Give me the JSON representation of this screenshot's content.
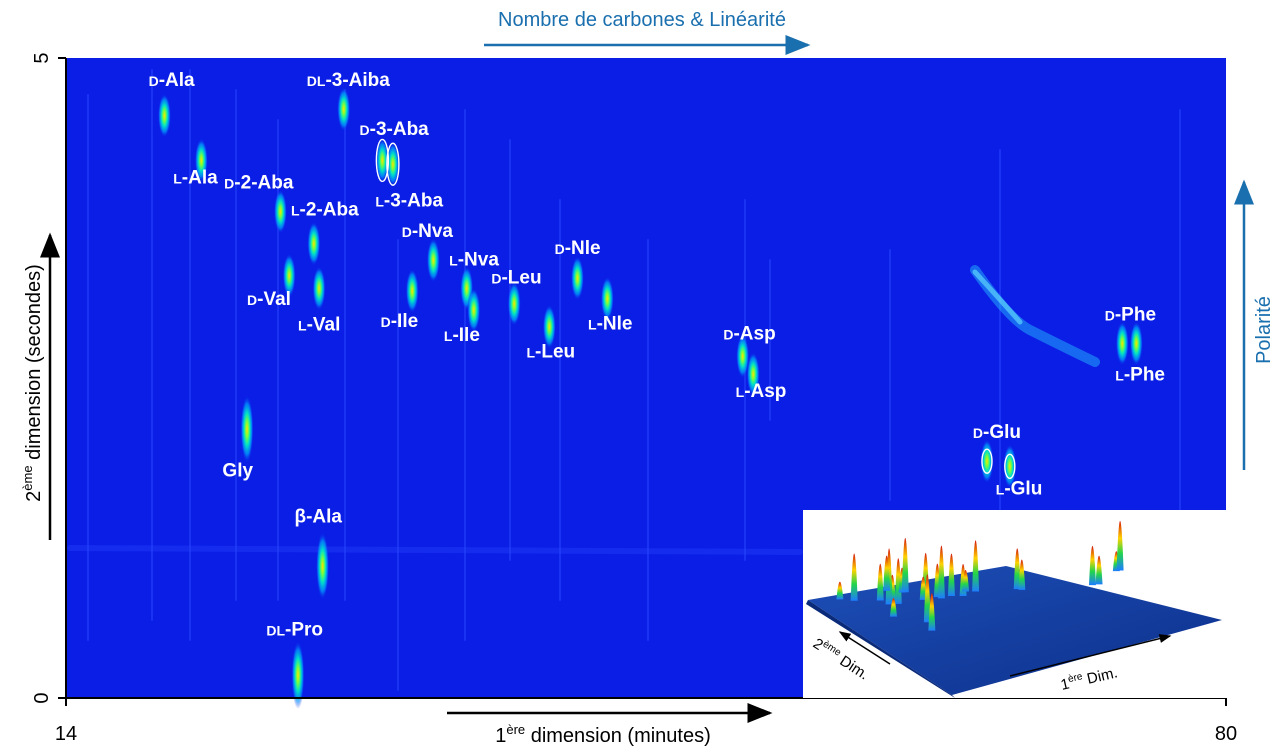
{
  "chart_data": {
    "type": "heatmap",
    "title": "",
    "xlabel": {
      "prefix": "1",
      "sup": "ère",
      "rest": " dimension (minutes)"
    },
    "ylabel": {
      "prefix": "2",
      "sup": "ème",
      "rest": " dimension (secondes)"
    },
    "xlim": [
      14,
      80
    ],
    "ylim": [
      0,
      5
    ],
    "x_ticks": [
      "14",
      "80"
    ],
    "y_ticks": [
      "0",
      "5"
    ],
    "top_annotation": "Nombre de carbones & Linéarité",
    "right_annotation": "Polarité",
    "colors": {
      "background": "#0a1ee6",
      "peak_core": "#ffe100",
      "peak_mid": "#00ff70",
      "peak_glow": "#00b4ff",
      "accent": "#1a6fae"
    },
    "peaks": [
      {
        "name": "D-Ala",
        "x": 19.6,
        "y": 4.55
      },
      {
        "name": "L-Ala",
        "x": 21.7,
        "y": 4.2
      },
      {
        "name": "D-2-Aba",
        "x": 26.2,
        "y": 3.8
      },
      {
        "name": "L-2-Aba",
        "x": 28.1,
        "y": 3.55
      },
      {
        "name": "D-Val",
        "x": 26.7,
        "y": 3.3
      },
      {
        "name": "L-Val",
        "x": 28.4,
        "y": 3.2
      },
      {
        "name": "DL-3-Aiba",
        "x": 29.8,
        "y": 4.6
      },
      {
        "name": "D-3-Aba",
        "x": 32.0,
        "y": 4.2
      },
      {
        "name": "L-3-Aba",
        "x": 32.6,
        "y": 4.17
      },
      {
        "name": "D-Nva",
        "x": 34.9,
        "y": 3.42
      },
      {
        "name": "L-Nva",
        "x": 36.8,
        "y": 3.2
      },
      {
        "name": "D-Ile",
        "x": 33.7,
        "y": 3.18
      },
      {
        "name": "L-Ile",
        "x": 37.2,
        "y": 3.03
      },
      {
        "name": "D-Leu",
        "x": 39.5,
        "y": 3.08
      },
      {
        "name": "L-Leu",
        "x": 41.5,
        "y": 2.9
      },
      {
        "name": "D-Nle",
        "x": 43.1,
        "y": 3.28
      },
      {
        "name": "L-Nle",
        "x": 44.8,
        "y": 3.12
      },
      {
        "name": "D-Asp",
        "x": 52.5,
        "y": 2.67
      },
      {
        "name": "L-Asp",
        "x": 53.1,
        "y": 2.53
      },
      {
        "name": "D-Phe",
        "x": 74.1,
        "y": 2.77
      },
      {
        "name": "L-Phe",
        "x": 74.9,
        "y": 2.77
      },
      {
        "name": "D-Glu",
        "x": 66.4,
        "y": 1.85
      },
      {
        "name": "L-Glu",
        "x": 67.7,
        "y": 1.81
      },
      {
        "name": "Gly",
        "x": 24.3,
        "y": 2.1
      },
      {
        "name": "β-Ala",
        "x": 28.6,
        "y": 1.03
      },
      {
        "name": "DL-Pro",
        "x": 27.2,
        "y": 0.18
      }
    ],
    "labels": [
      {
        "id": "d-ala",
        "pre": "D",
        "main": "-Ala",
        "x": 18.7,
        "y": 4.78
      },
      {
        "id": "l-ala",
        "pre": "L",
        "main": "-Ala",
        "x": 20.1,
        "y": 4.02
      },
      {
        "id": "dl-3-aiba",
        "pre": "DL",
        "main": "-3-Aiba",
        "x": 27.7,
        "y": 4.78
      },
      {
        "id": "d-3-aba",
        "pre": "D",
        "main": "-3-Aba",
        "x": 30.7,
        "y": 4.4
      },
      {
        "id": "l-3-aba",
        "pre": "L",
        "main": "-3-Aba",
        "x": 31.6,
        "y": 3.84
      },
      {
        "id": "d-2-aba",
        "pre": "D",
        "main": "-2-Aba",
        "x": 23.0,
        "y": 3.98
      },
      {
        "id": "l-2-aba",
        "pre": "L",
        "main": "-2-Aba",
        "x": 26.8,
        "y": 3.77
      },
      {
        "id": "d-val",
        "pre": "D",
        "main": "-Val",
        "x": 24.3,
        "y": 3.07
      },
      {
        "id": "l-val",
        "pre": "L",
        "main": "-Val",
        "x": 27.2,
        "y": 2.87
      },
      {
        "id": "d-nva",
        "pre": "D",
        "main": "-Nva",
        "x": 33.1,
        "y": 3.6
      },
      {
        "id": "l-nva",
        "pre": "L",
        "main": "-Nva",
        "x": 35.8,
        "y": 3.38
      },
      {
        "id": "d-ile",
        "pre": "D",
        "main": "-Ile",
        "x": 31.9,
        "y": 2.9
      },
      {
        "id": "l-ile",
        "pre": "L",
        "main": "-Ile",
        "x": 35.5,
        "y": 2.79
      },
      {
        "id": "d-leu",
        "pre": "D",
        "main": "-Leu",
        "x": 38.2,
        "y": 3.24
      },
      {
        "id": "l-leu",
        "pre": "L",
        "main": "-Leu",
        "x": 40.2,
        "y": 2.66
      },
      {
        "id": "d-nle",
        "pre": "D",
        "main": "-Nle",
        "x": 41.8,
        "y": 3.47
      },
      {
        "id": "l-nle",
        "pre": "L",
        "main": "-Nle",
        "x": 43.7,
        "y": 2.88
      },
      {
        "id": "d-asp",
        "pre": "D",
        "main": "-Asp",
        "x": 51.4,
        "y": 2.8
      },
      {
        "id": "l-asp",
        "pre": "L",
        "main": "-Asp",
        "x": 52.1,
        "y": 2.35
      },
      {
        "id": "d-phe",
        "pre": "D",
        "main": "-Phe",
        "x": 73.1,
        "y": 2.95
      },
      {
        "id": "l-phe",
        "pre": "L",
        "main": "-Phe",
        "x": 73.7,
        "y": 2.48
      },
      {
        "id": "d-glu",
        "pre": "D",
        "main": "-Glu",
        "x": 65.6,
        "y": 2.03
      },
      {
        "id": "l-glu",
        "pre": "L",
        "main": "-Glu",
        "x": 66.9,
        "y": 1.59
      },
      {
        "id": "gly",
        "pre": "",
        "main": "Gly",
        "x": 22.9,
        "y": 1.73
      },
      {
        "id": "b-ala",
        "pre": "",
        "main": "β-Ala",
        "x": 27.0,
        "y": 1.37
      },
      {
        "id": "dl-pro",
        "pre": "DL",
        "main": "-Pro",
        "x": 25.4,
        "y": 0.49
      }
    ],
    "inset": {
      "x_axis_label": {
        "prefix": "1",
        "sup": "ère",
        "rest": " Dim."
      },
      "y_axis_label": {
        "prefix": "2",
        "sup": "ème",
        "rest": " Dim."
      }
    }
  }
}
